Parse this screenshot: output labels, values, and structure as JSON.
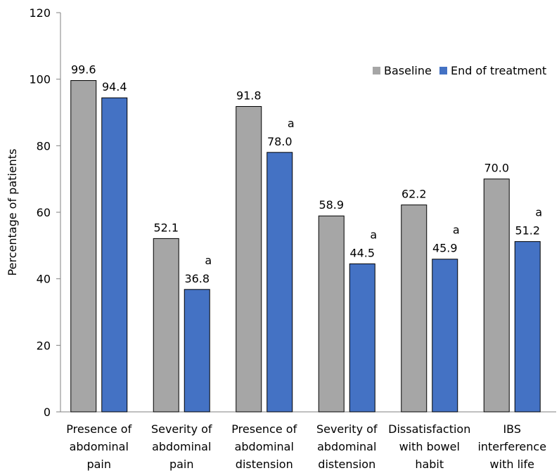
{
  "chart_data": {
    "type": "bar",
    "ylabel": "Percentage of patients",
    "xlabel": "",
    "ylim": [
      0,
      120
    ],
    "yticks": [
      0,
      20,
      40,
      60,
      80,
      100,
      120
    ],
    "grid": false,
    "legend_position": "top-right",
    "categories": [
      [
        "Presence of",
        "abdominal",
        "pain"
      ],
      [
        "Severity of",
        "abdominal",
        "pain"
      ],
      [
        "Presence of",
        "abdominal",
        "distension"
      ],
      [
        "Severity of",
        "abdominal",
        "distension"
      ],
      [
        "Dissatisfaction",
        "with bowel",
        "habit"
      ],
      [
        "IBS",
        "interference",
        "with life"
      ]
    ],
    "series": [
      {
        "name": "Baseline",
        "color": "#a6a6a6",
        "values": [
          99.6,
          52.1,
          91.8,
          58.9,
          62.2,
          70.0
        ],
        "labels": [
          "99.6",
          "52.1",
          "91.8",
          "58.9",
          "62.2",
          "70.0"
        ],
        "annotations": [
          "",
          "",
          "",
          "",
          "",
          ""
        ]
      },
      {
        "name": "End of treatment",
        "color": "#4472c4",
        "values": [
          94.4,
          36.8,
          78.0,
          44.5,
          45.9,
          51.2
        ],
        "labels": [
          "94.4",
          "36.8",
          "78.0",
          "44.5",
          "45.9",
          "51.2"
        ],
        "annotations": [
          "",
          "a",
          "a",
          "a",
          "a",
          "a"
        ]
      }
    ]
  }
}
